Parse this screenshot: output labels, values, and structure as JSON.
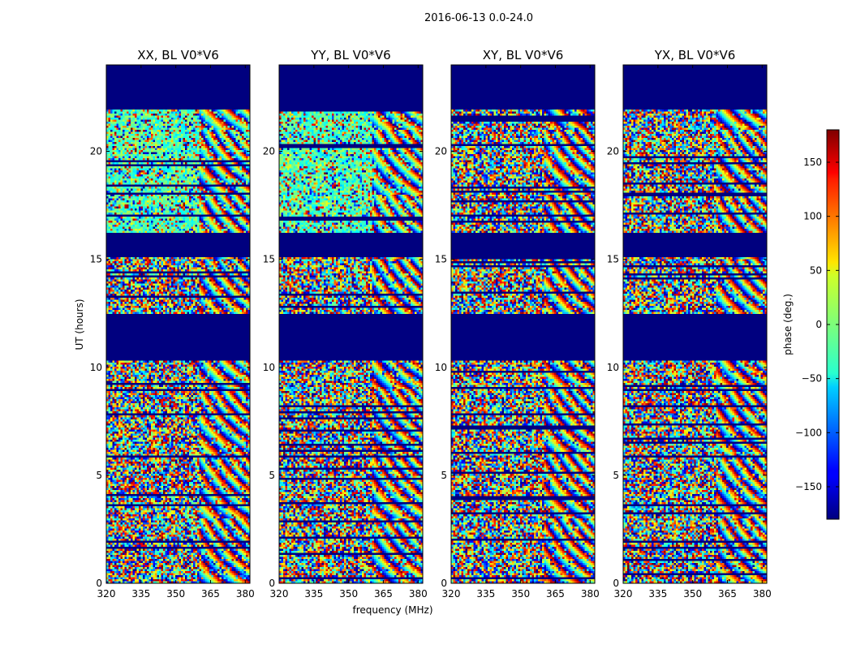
{
  "chart_data": {
    "type": "heatmap",
    "title": "2016-06-13 0.0-24.0",
    "xlabel": "frequency (MHz)",
    "ylabel": "UT (hours)",
    "xlim": [
      320,
      382
    ],
    "ylim": [
      0,
      24
    ],
    "x_ticks": [
      320,
      335,
      350,
      365,
      380
    ],
    "y_ticks": [
      0,
      5,
      10,
      15,
      20
    ],
    "panels": [
      {
        "name": "XX, BL V0*V6",
        "pol": "XX"
      },
      {
        "name": "YY, BL V0*V6",
        "pol": "YY"
      },
      {
        "name": "XY, BL V0*V6",
        "pol": "XY"
      },
      {
        "name": "YX, BL V0*V6",
        "pol": "YX"
      }
    ],
    "colorbar": {
      "label": "phase (deg.)",
      "range": [
        -180,
        180
      ],
      "ticks": [
        -150,
        -100,
        -50,
        0,
        50,
        100,
        150
      ],
      "colormap": "jet"
    },
    "masked_ut_ranges": [
      [
        10.3,
        12.5
      ],
      [
        15.1,
        16.2
      ],
      [
        21.9,
        24.0
      ]
    ],
    "masked_color": "#00007f"
  }
}
